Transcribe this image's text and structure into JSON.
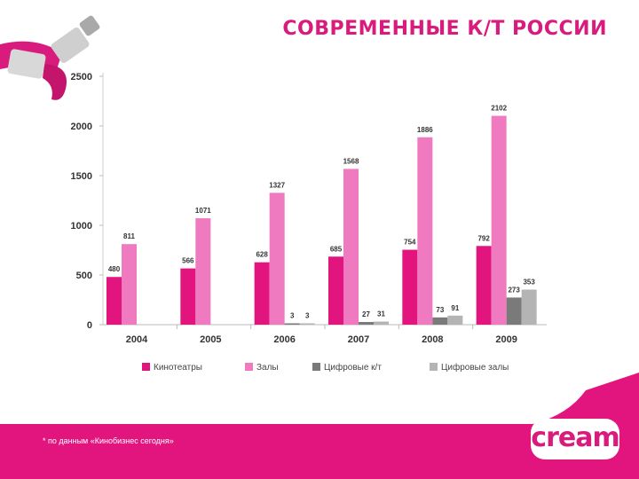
{
  "slide": {
    "title": "СОВРЕМЕННЫЕ К/Т РОССИИ",
    "footnote": "* по данным «Кинобизнес сегодня»",
    "logo": "cream"
  },
  "colors": {
    "accent": "#d81b7c",
    "cinemas": "#e2157f",
    "screens": "#f07ac0",
    "digital_cinemas": "#7a7a7a",
    "digital_screens": "#b4b4b4"
  },
  "chart_data": {
    "type": "bar",
    "categories": [
      "2004",
      "2005",
      "2006",
      "2007",
      "2008",
      "2009"
    ],
    "series": [
      {
        "name": "Кинотеатры",
        "values": [
          480,
          566,
          628,
          685,
          754,
          792
        ]
      },
      {
        "name": "Залы",
        "values": [
          811,
          1071,
          1327,
          1568,
          1886,
          2102
        ]
      },
      {
        "name": "Цифровые к/т",
        "values": [
          null,
          null,
          3,
          27,
          73,
          273
        ]
      },
      {
        "name": "Цифровые залы",
        "values": [
          null,
          null,
          3,
          31,
          91,
          353
        ]
      }
    ],
    "ylim": [
      0,
      2500
    ],
    "yticks": [
      0,
      500,
      1000,
      1500,
      2000,
      2500
    ],
    "legend": "bottom",
    "grid": false
  }
}
